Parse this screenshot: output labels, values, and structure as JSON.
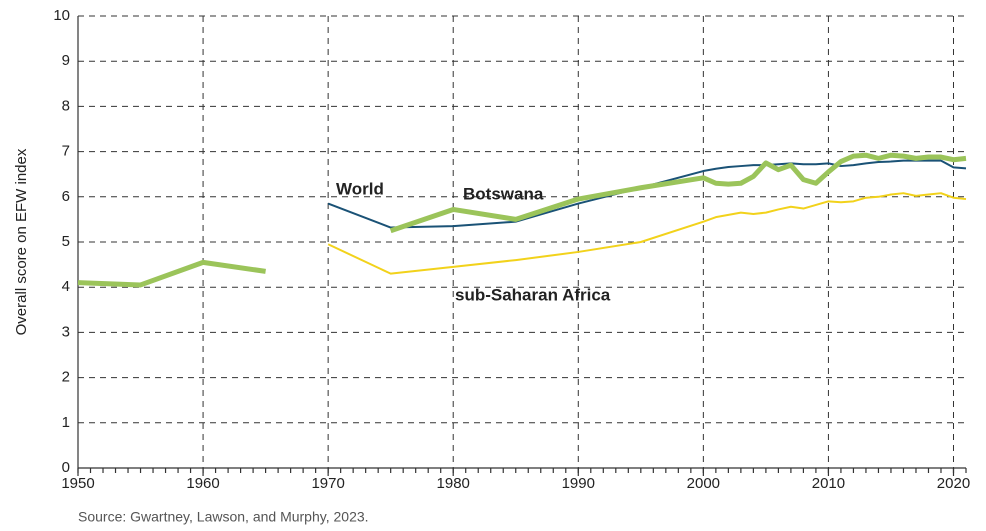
{
  "chart_data": {
    "type": "line",
    "y_label": "Overall score on EFW index",
    "source": "Source: Gwartney, Lawson, and Murphy, 2023.",
    "x": [
      1950,
      1955,
      1960,
      1965,
      1970,
      1975,
      1980,
      1985,
      1990,
      1995,
      2000,
      2001,
      2002,
      2003,
      2004,
      2005,
      2006,
      2007,
      2008,
      2009,
      2010,
      2011,
      2012,
      2013,
      2014,
      2015,
      2016,
      2017,
      2018,
      2019,
      2020,
      2021
    ],
    "series": [
      {
        "name": "sub-Saharan Africa",
        "color": "#f2d21b",
        "width": 2,
        "values": [
          null,
          null,
          null,
          null,
          4.95,
          4.3,
          4.45,
          4.6,
          4.78,
          5.0,
          5.45,
          5.55,
          5.6,
          5.65,
          5.62,
          5.65,
          5.72,
          5.78,
          5.74,
          5.82,
          5.9,
          5.88,
          5.9,
          5.98,
          6.0,
          6.05,
          6.08,
          6.02,
          6.05,
          6.08,
          5.98,
          5.95
        ]
      },
      {
        "name": "World",
        "color": "#1a5276",
        "width": 2,
        "values": [
          null,
          null,
          null,
          null,
          5.85,
          5.32,
          5.35,
          5.45,
          5.85,
          6.2,
          6.57,
          6.62,
          6.66,
          6.68,
          6.7,
          6.7,
          6.72,
          6.74,
          6.72,
          6.72,
          6.74,
          6.68,
          6.7,
          6.74,
          6.77,
          6.78,
          6.8,
          6.8,
          6.8,
          6.8,
          6.65,
          6.63
        ]
      },
      {
        "name": "Botswana",
        "color": "#9bc45a",
        "width": 5,
        "values": [
          4.1,
          4.05,
          4.55,
          4.35,
          null,
          5.25,
          5.72,
          5.5,
          5.95,
          6.2,
          6.42,
          6.3,
          6.28,
          6.3,
          6.45,
          6.75,
          6.6,
          6.7,
          6.38,
          6.3,
          6.55,
          6.78,
          6.9,
          6.92,
          6.85,
          6.92,
          6.9,
          6.85,
          6.88,
          6.88,
          6.82,
          6.85
        ]
      }
    ],
    "xlim": [
      1950,
      2021
    ],
    "xticks": [
      1950,
      1960,
      1970,
      1980,
      1990,
      2000,
      2010,
      2020
    ],
    "xminor_step": 1,
    "ylim": [
      0,
      10
    ],
    "yticks": [
      0,
      1,
      2,
      3,
      4,
      5,
      6,
      7,
      8,
      9,
      10
    ],
    "grid": true
  }
}
